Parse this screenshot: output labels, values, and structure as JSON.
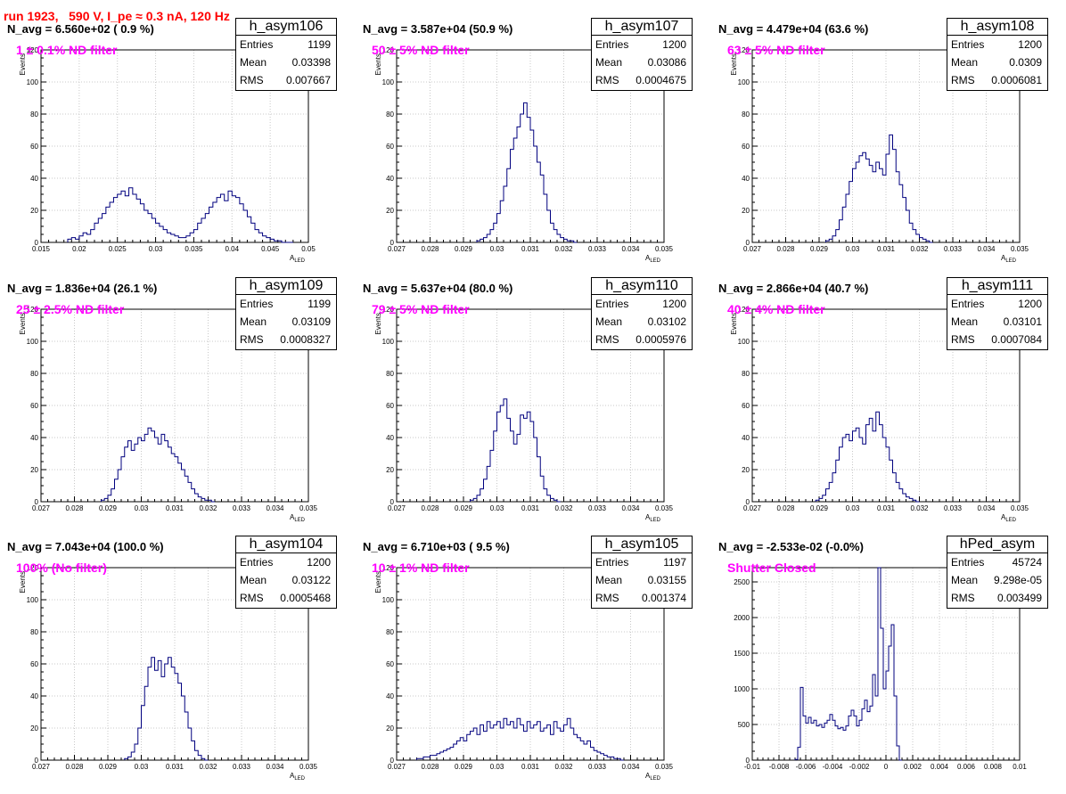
{
  "run_title": "run 1923,   590 V, I_pe ≈ 0.3 nA, 120 Hz",
  "stat_labels": {
    "entries": "Entries",
    "mean": "Mean",
    "rms": "RMS"
  },
  "colors": {
    "histogram": "#00007f",
    "filter_text": "#ff00ff",
    "run_title": "#ff0000"
  },
  "chart_data": [
    {
      "type": "histogram",
      "title": "h_asym106",
      "navg": "N_avg = 6.560e+02 ( 0.9 %)",
      "filter": "1 ± 0.1% ND filter",
      "entries": "1199",
      "mean": "0.03398",
      "rms": "0.007667",
      "xlabel": "A_LED",
      "ylabel": "Events",
      "xlim": [
        0.015,
        0.05
      ],
      "ylim": [
        0,
        120
      ],
      "xticks": [
        0.015,
        0.02,
        0.025,
        0.03,
        0.035,
        0.04,
        0.045,
        0.05
      ],
      "xticklabels": [
        "0.015",
        "0.02",
        "0.025",
        "0.03",
        "0.035",
        "0.04",
        "0.045",
        "0.05"
      ],
      "yticks": [
        0,
        20,
        40,
        60,
        80,
        100,
        120
      ],
      "bin_start": 0.0185,
      "bin_width": 0.0005,
      "counts": [
        2,
        3,
        2,
        4,
        6,
        5,
        8,
        12,
        15,
        18,
        22,
        25,
        28,
        30,
        32,
        29,
        34,
        30,
        27,
        24,
        20,
        18,
        15,
        12,
        10,
        8,
        6,
        5,
        4,
        3,
        3,
        4,
        6,
        8,
        12,
        15,
        18,
        22,
        25,
        28,
        30,
        26,
        32,
        29,
        28,
        24,
        20,
        16,
        12,
        8,
        6,
        4,
        3,
        2,
        1,
        1,
        0,
        0,
        0
      ]
    },
    {
      "type": "histogram",
      "title": "h_asym107",
      "navg": "N_avg = 3.587e+04 (50.9 %)",
      "filter": "50 ± 5% ND filter",
      "entries": "1200",
      "mean": "0.03086",
      "rms": "0.0004675",
      "xlabel": "A_LED",
      "ylabel": "Events",
      "xlim": [
        0.027,
        0.035
      ],
      "ylim": [
        0,
        120
      ],
      "xticks": [
        0.027,
        0.028,
        0.029,
        0.03,
        0.031,
        0.032,
        0.033,
        0.034,
        0.035
      ],
      "xticklabels": [
        "0.027",
        "0.028",
        "0.029",
        "0.03",
        "0.031",
        "0.032",
        "0.033",
        "0.034",
        "0.035"
      ],
      "yticks": [
        0,
        20,
        40,
        60,
        80,
        100,
        120
      ],
      "bin_start": 0.0294,
      "bin_width": 0.0001,
      "counts": [
        1,
        2,
        3,
        5,
        8,
        12,
        18,
        26,
        35,
        46,
        58,
        65,
        72,
        80,
        87,
        78,
        70,
        60,
        50,
        42,
        30,
        20,
        12,
        8,
        5,
        3,
        2,
        1,
        1,
        0
      ]
    },
    {
      "type": "histogram",
      "title": "h_asym108",
      "navg": "N_avg = 4.479e+04 (63.6 %)",
      "filter": "63 ± 5% ND filter",
      "entries": "1200",
      "mean": "0.0309",
      "rms": "0.0006081",
      "xlabel": "A_LED",
      "ylabel": "Events",
      "xlim": [
        0.027,
        0.035
      ],
      "ylim": [
        0,
        120
      ],
      "xticks": [
        0.027,
        0.028,
        0.029,
        0.03,
        0.031,
        0.032,
        0.033,
        0.034,
        0.035
      ],
      "xticklabels": [
        "0.027",
        "0.028",
        "0.029",
        "0.03",
        "0.031",
        "0.032",
        "0.033",
        "0.034",
        "0.035"
      ],
      "yticks": [
        0,
        20,
        40,
        60,
        80,
        100,
        120
      ],
      "bin_start": 0.0292,
      "bin_width": 0.0001,
      "counts": [
        1,
        2,
        4,
        8,
        14,
        22,
        30,
        38,
        46,
        50,
        54,
        56,
        52,
        48,
        44,
        50,
        46,
        42,
        55,
        67,
        58,
        44,
        36,
        28,
        20,
        12,
        8,
        5,
        3,
        2,
        1,
        0
      ]
    },
    {
      "type": "histogram",
      "title": "h_asym109",
      "navg": "N_avg = 1.836e+04 (26.1 %)",
      "filter": "25 ± 2.5% ND filter",
      "entries": "1199",
      "mean": "0.03109",
      "rms": "0.0008327",
      "xlabel": "A_LED",
      "ylabel": "Events",
      "xlim": [
        0.027,
        0.035
      ],
      "ylim": [
        0,
        120
      ],
      "xticks": [
        0.027,
        0.028,
        0.029,
        0.03,
        0.031,
        0.032,
        0.033,
        0.034,
        0.035
      ],
      "xticklabels": [
        "0.027",
        "0.028",
        "0.029",
        "0.03",
        "0.031",
        "0.032",
        "0.033",
        "0.034",
        "0.035"
      ],
      "yticks": [
        0,
        20,
        40,
        60,
        80,
        100,
        120
      ],
      "bin_start": 0.0288,
      "bin_width": 0.0001,
      "counts": [
        1,
        2,
        4,
        8,
        14,
        20,
        28,
        34,
        38,
        32,
        36,
        40,
        38,
        42,
        46,
        44,
        40,
        36,
        42,
        38,
        34,
        30,
        28,
        24,
        20,
        16,
        12,
        8,
        5,
        3,
        2,
        1,
        1,
        0
      ]
    },
    {
      "type": "histogram",
      "title": "h_asym110",
      "navg": "N_avg = 5.637e+04 (80.0 %)",
      "filter": "79 ± 5% ND filter",
      "entries": "1200",
      "mean": "0.03102",
      "rms": "0.0005976",
      "xlabel": "A_LED",
      "ylabel": "Events",
      "xlim": [
        0.027,
        0.035
      ],
      "ylim": [
        0,
        120
      ],
      "xticks": [
        0.027,
        0.028,
        0.029,
        0.03,
        0.031,
        0.032,
        0.033,
        0.034,
        0.035
      ],
      "xticklabels": [
        "0.027",
        "0.028",
        "0.029",
        "0.03",
        "0.031",
        "0.032",
        "0.033",
        "0.034",
        "0.035"
      ],
      "yticks": [
        0,
        20,
        40,
        60,
        80,
        100,
        120
      ],
      "bin_start": 0.0292,
      "bin_width": 0.0001,
      "counts": [
        1,
        2,
        4,
        8,
        14,
        22,
        32,
        44,
        56,
        60,
        64,
        52,
        44,
        36,
        42,
        54,
        52,
        56,
        50,
        40,
        28,
        16,
        8,
        4,
        2,
        1,
        0
      ]
    },
    {
      "type": "histogram",
      "title": "h_asym111",
      "navg": "N_avg = 2.866e+04 (40.7 %)",
      "filter": "40 ± 4% ND filter",
      "entries": "1200",
      "mean": "0.03101",
      "rms": "0.0007084",
      "xlabel": "A_LED",
      "ylabel": "Events",
      "xlim": [
        0.027,
        0.035
      ],
      "ylim": [
        0,
        120
      ],
      "xticks": [
        0.027,
        0.028,
        0.029,
        0.03,
        0.031,
        0.032,
        0.033,
        0.034,
        0.035
      ],
      "xticklabels": [
        "0.027",
        "0.028",
        "0.029",
        "0.03",
        "0.031",
        "0.032",
        "0.033",
        "0.034",
        "0.035"
      ],
      "yticks": [
        0,
        20,
        40,
        60,
        80,
        100,
        120
      ],
      "bin_start": 0.0289,
      "bin_width": 0.0001,
      "counts": [
        1,
        2,
        4,
        8,
        12,
        18,
        26,
        34,
        40,
        42,
        38,
        44,
        46,
        40,
        36,
        48,
        52,
        44,
        56,
        48,
        40,
        34,
        26,
        18,
        12,
        8,
        5,
        3,
        2,
        1,
        0
      ]
    },
    {
      "type": "histogram",
      "title": "h_asym104",
      "navg": "N_avg = 7.043e+04 (100.0 %)",
      "filter": "100% (No filter)",
      "entries": "1200",
      "mean": "0.03122",
      "rms": "0.0005468",
      "xlabel": "A_LED",
      "ylabel": "Events",
      "xlim": [
        0.027,
        0.035
      ],
      "ylim": [
        0,
        120
      ],
      "xticks": [
        0.027,
        0.028,
        0.029,
        0.03,
        0.031,
        0.032,
        0.033,
        0.034,
        0.035
      ],
      "xticklabels": [
        "0.027",
        "0.028",
        "0.029",
        "0.03",
        "0.031",
        "0.032",
        "0.033",
        "0.034",
        "0.035"
      ],
      "yticks": [
        0,
        20,
        40,
        60,
        80,
        100,
        120
      ],
      "bin_start": 0.0295,
      "bin_width": 0.0001,
      "counts": [
        1,
        2,
        5,
        10,
        20,
        34,
        46,
        58,
        64,
        56,
        62,
        52,
        60,
        64,
        58,
        54,
        48,
        40,
        30,
        20,
        12,
        6,
        3,
        1,
        0
      ]
    },
    {
      "type": "histogram",
      "title": "h_asym105",
      "navg": "N_avg = 6.710e+03 ( 9.5 %)",
      "filter": "10 ± 1% ND filter",
      "entries": "1197",
      "mean": "0.03155",
      "rms": "0.001374",
      "xlabel": "A_LED",
      "ylabel": "Events",
      "xlim": [
        0.027,
        0.035
      ],
      "ylim": [
        0,
        120
      ],
      "xticks": [
        0.027,
        0.028,
        0.029,
        0.03,
        0.031,
        0.032,
        0.033,
        0.034,
        0.035
      ],
      "xticklabels": [
        "0.027",
        "0.028",
        "0.029",
        "0.03",
        "0.031",
        "0.032",
        "0.033",
        "0.034",
        "0.035"
      ],
      "yticks": [
        0,
        20,
        40,
        60,
        80,
        100,
        120
      ],
      "bin_start": 0.0276,
      "bin_width": 0.0001,
      "counts": [
        1,
        1,
        2,
        2,
        3,
        3,
        4,
        5,
        6,
        7,
        8,
        10,
        12,
        14,
        12,
        16,
        18,
        20,
        16,
        22,
        18,
        24,
        20,
        22,
        24,
        20,
        26,
        22,
        24,
        20,
        26,
        22,
        18,
        24,
        20,
        22,
        24,
        18,
        20,
        22,
        16,
        24,
        20,
        18,
        22,
        26,
        20,
        16,
        14,
        12,
        10,
        12,
        8,
        6,
        5,
        4,
        3,
        2,
        2,
        1,
        1,
        0
      ]
    },
    {
      "type": "histogram",
      "title": "hPed_asym",
      "navg": "N_avg = -2.533e-02 (-0.0%)",
      "filter": "Shutter Closed",
      "entries": "45724",
      "mean": "9.298e-05",
      "rms": "0.003499",
      "xlabel": "",
      "ylabel": "",
      "xlim": [
        -0.01,
        0.01
      ],
      "ylim": [
        0,
        2700
      ],
      "xticks": [
        -0.01,
        -0.008,
        -0.006,
        -0.004,
        -0.002,
        0,
        0.002,
        0.004,
        0.006,
        0.008,
        0.01
      ],
      "xticklabels": [
        "-0.01",
        "-0.008",
        "-0.006",
        "-0.004",
        "-0.002",
        "0",
        "0.002",
        "0.004",
        "0.006",
        "0.008",
        "0.01"
      ],
      "yticks": [
        0,
        500,
        1000,
        1500,
        2000,
        2500
      ],
      "bin_start": -0.0068,
      "bin_width": 0.0002,
      "counts": [
        10,
        180,
        1020,
        620,
        520,
        600,
        520,
        560,
        480,
        500,
        460,
        520,
        560,
        640,
        560,
        480,
        440,
        460,
        420,
        480,
        620,
        700,
        620,
        480,
        560,
        720,
        840,
        680,
        760,
        1200,
        900,
        2700,
        1850,
        1000,
        1250,
        1600,
        1900,
        900,
        200,
        0
      ]
    }
  ]
}
